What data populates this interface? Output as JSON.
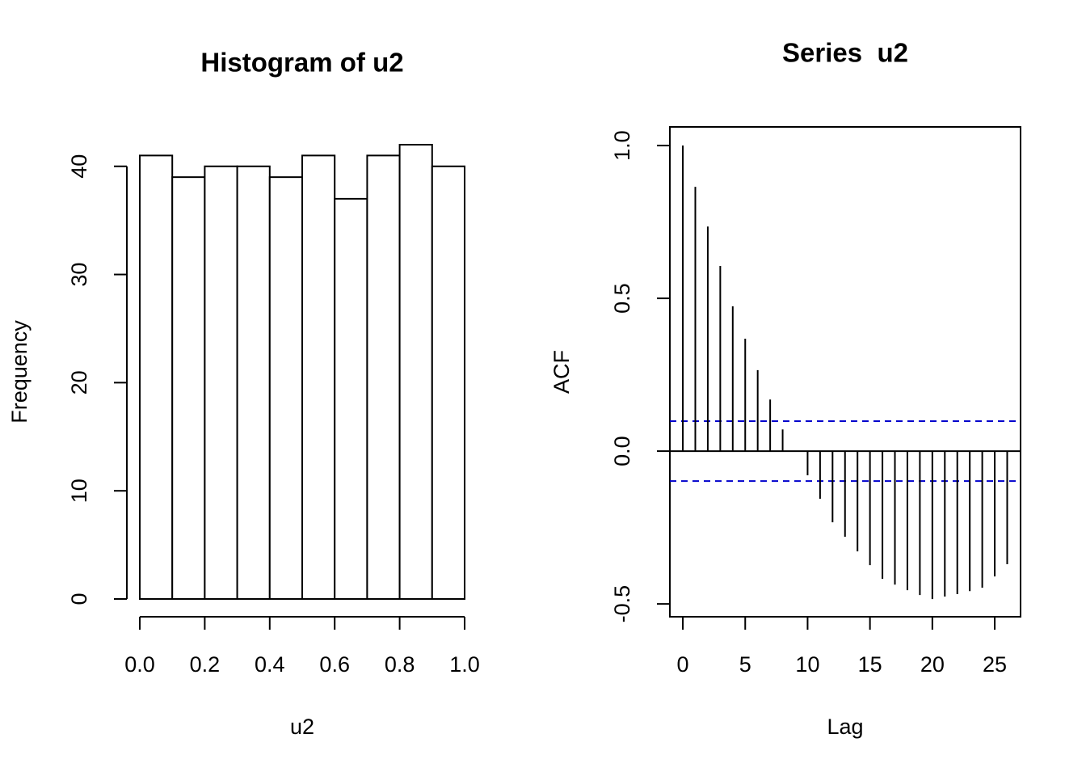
{
  "chart_data": [
    {
      "type": "histogram",
      "title": "Histogram of u2",
      "x_label": "u2",
      "y_label": "Frequency",
      "bins": [
        0,
        0.1,
        0.2,
        0.3,
        0.4,
        0.5,
        0.6,
        0.7,
        0.8,
        0.9,
        1.0
      ],
      "values": [
        41,
        39,
        40,
        40,
        39,
        41,
        37,
        41,
        42,
        40
      ],
      "color": "#ffffff",
      "xlim": [
        0,
        1
      ],
      "ylim": [
        0,
        42
      ],
      "xticks": [
        {
          "value": 0,
          "label": "0.0"
        },
        0.2,
        0.4,
        0.6,
        0.8,
        {
          "value": 1,
          "label": "1.0"
        }
      ],
      "yticks": [
        0,
        10,
        20,
        30,
        40
      ]
    },
    {
      "type": "acf",
      "title": "Series  u2",
      "x_label": "Lag",
      "y_label": "ACF",
      "x": [
        0,
        1,
        2,
        3,
        4,
        5,
        6,
        7,
        8,
        9,
        10,
        11,
        12,
        13,
        14,
        15,
        16,
        17,
        18,
        19,
        20,
        21,
        22,
        23,
        24,
        25,
        26
      ],
      "values": [
        1.0,
        0.865,
        0.735,
        0.606,
        0.474,
        0.368,
        0.265,
        0.169,
        0.071,
        0.0,
        -0.079,
        -0.156,
        -0.233,
        -0.28,
        -0.328,
        -0.373,
        -0.418,
        -0.437,
        -0.455,
        -0.471,
        -0.484,
        -0.476,
        -0.468,
        -0.458,
        -0.447,
        -0.41,
        -0.37
      ],
      "color": "#000000",
      "confidence_bound": 0.098,
      "confidence_color": "#0000cc",
      "xlim": [
        -1.04,
        27.07
      ],
      "ylim": [
        -0.542,
        1.061
      ],
      "xticks": [
        0,
        5,
        10,
        15,
        20,
        25
      ],
      "yticks": [
        -0.5,
        {
          "value": 0,
          "label": "0.0"
        },
        0.5,
        {
          "value": 1,
          "label": "1.0"
        }
      ]
    }
  ]
}
